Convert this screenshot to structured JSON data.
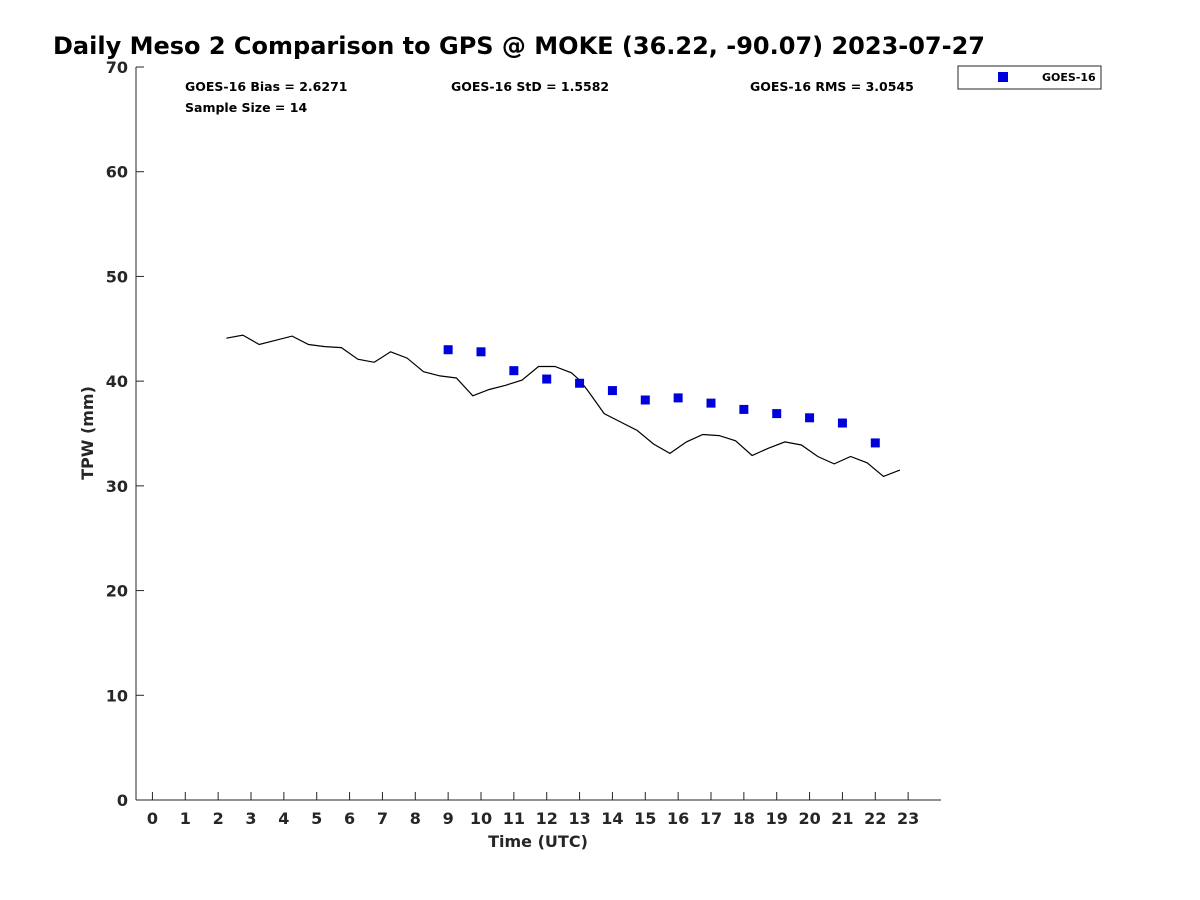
{
  "chart_data": {
    "type": "scatter",
    "title": "Daily Meso 2 Comparison to GPS @ MOKE (36.22, -90.07) 2023-07-27",
    "xlabel": "Time (UTC)",
    "ylabel": "TPW (mm)",
    "xlim": [
      -0.5,
      24.0
    ],
    "ylim": [
      0,
      70
    ],
    "xticks": [
      0,
      1,
      2,
      3,
      4,
      5,
      6,
      7,
      8,
      9,
      10,
      11,
      12,
      13,
      14,
      15,
      16,
      17,
      18,
      19,
      20,
      21,
      22,
      23
    ],
    "yticks": [
      0,
      10,
      20,
      30,
      40,
      50,
      60,
      70
    ],
    "grid": false,
    "legend_position": "top-right-outside",
    "stats": {
      "bias": "GOES-16 Bias = 2.6271",
      "std": "GOES-16 StD = 1.5582",
      "rms": "GOES-16 RMS = 3.0545",
      "sample": "Sample Size = 14"
    },
    "series": [
      {
        "name": "GOES-16",
        "kind": "scatter",
        "marker": "square",
        "color": "#0000dd",
        "x": [
          9,
          10,
          11,
          12,
          13,
          14,
          15,
          16,
          17,
          18,
          19,
          20,
          21,
          22
        ],
        "y": [
          43.0,
          42.8,
          41.0,
          40.2,
          39.8,
          39.1,
          38.2,
          38.4,
          37.9,
          37.3,
          36.9,
          36.5,
          36.0,
          34.1
        ]
      },
      {
        "kind": "line",
        "color": "#000000",
        "x": [
          2.25,
          2.75,
          3.25,
          3.75,
          4.25,
          4.75,
          5.25,
          5.75,
          6.25,
          6.75,
          7.25,
          7.75,
          8.25,
          8.75,
          9.25,
          9.75,
          10.25,
          10.75,
          11.25,
          11.75,
          12.25,
          12.75,
          13.0,
          13.25,
          13.75,
          14.25,
          14.75,
          15.25,
          15.75,
          16.25,
          16.75,
          17.25,
          17.75,
          18.25,
          18.75,
          19.25,
          19.75,
          20.25,
          20.75,
          21.25,
          21.75,
          22.25,
          22.75
        ],
        "y": [
          44.1,
          44.4,
          43.5,
          43.9,
          44.3,
          43.5,
          43.3,
          43.2,
          42.1,
          41.8,
          42.8,
          42.2,
          40.9,
          40.5,
          40.3,
          38.6,
          39.2,
          39.6,
          40.1,
          41.4,
          41.4,
          40.8,
          40.1,
          39.1,
          36.9,
          36.1,
          35.3,
          34.0,
          33.1,
          34.2,
          34.9,
          34.8,
          34.3,
          32.9,
          33.6,
          34.2,
          33.9,
          32.8,
          32.1,
          32.8,
          32.2,
          30.9,
          31.5
        ]
      }
    ]
  }
}
